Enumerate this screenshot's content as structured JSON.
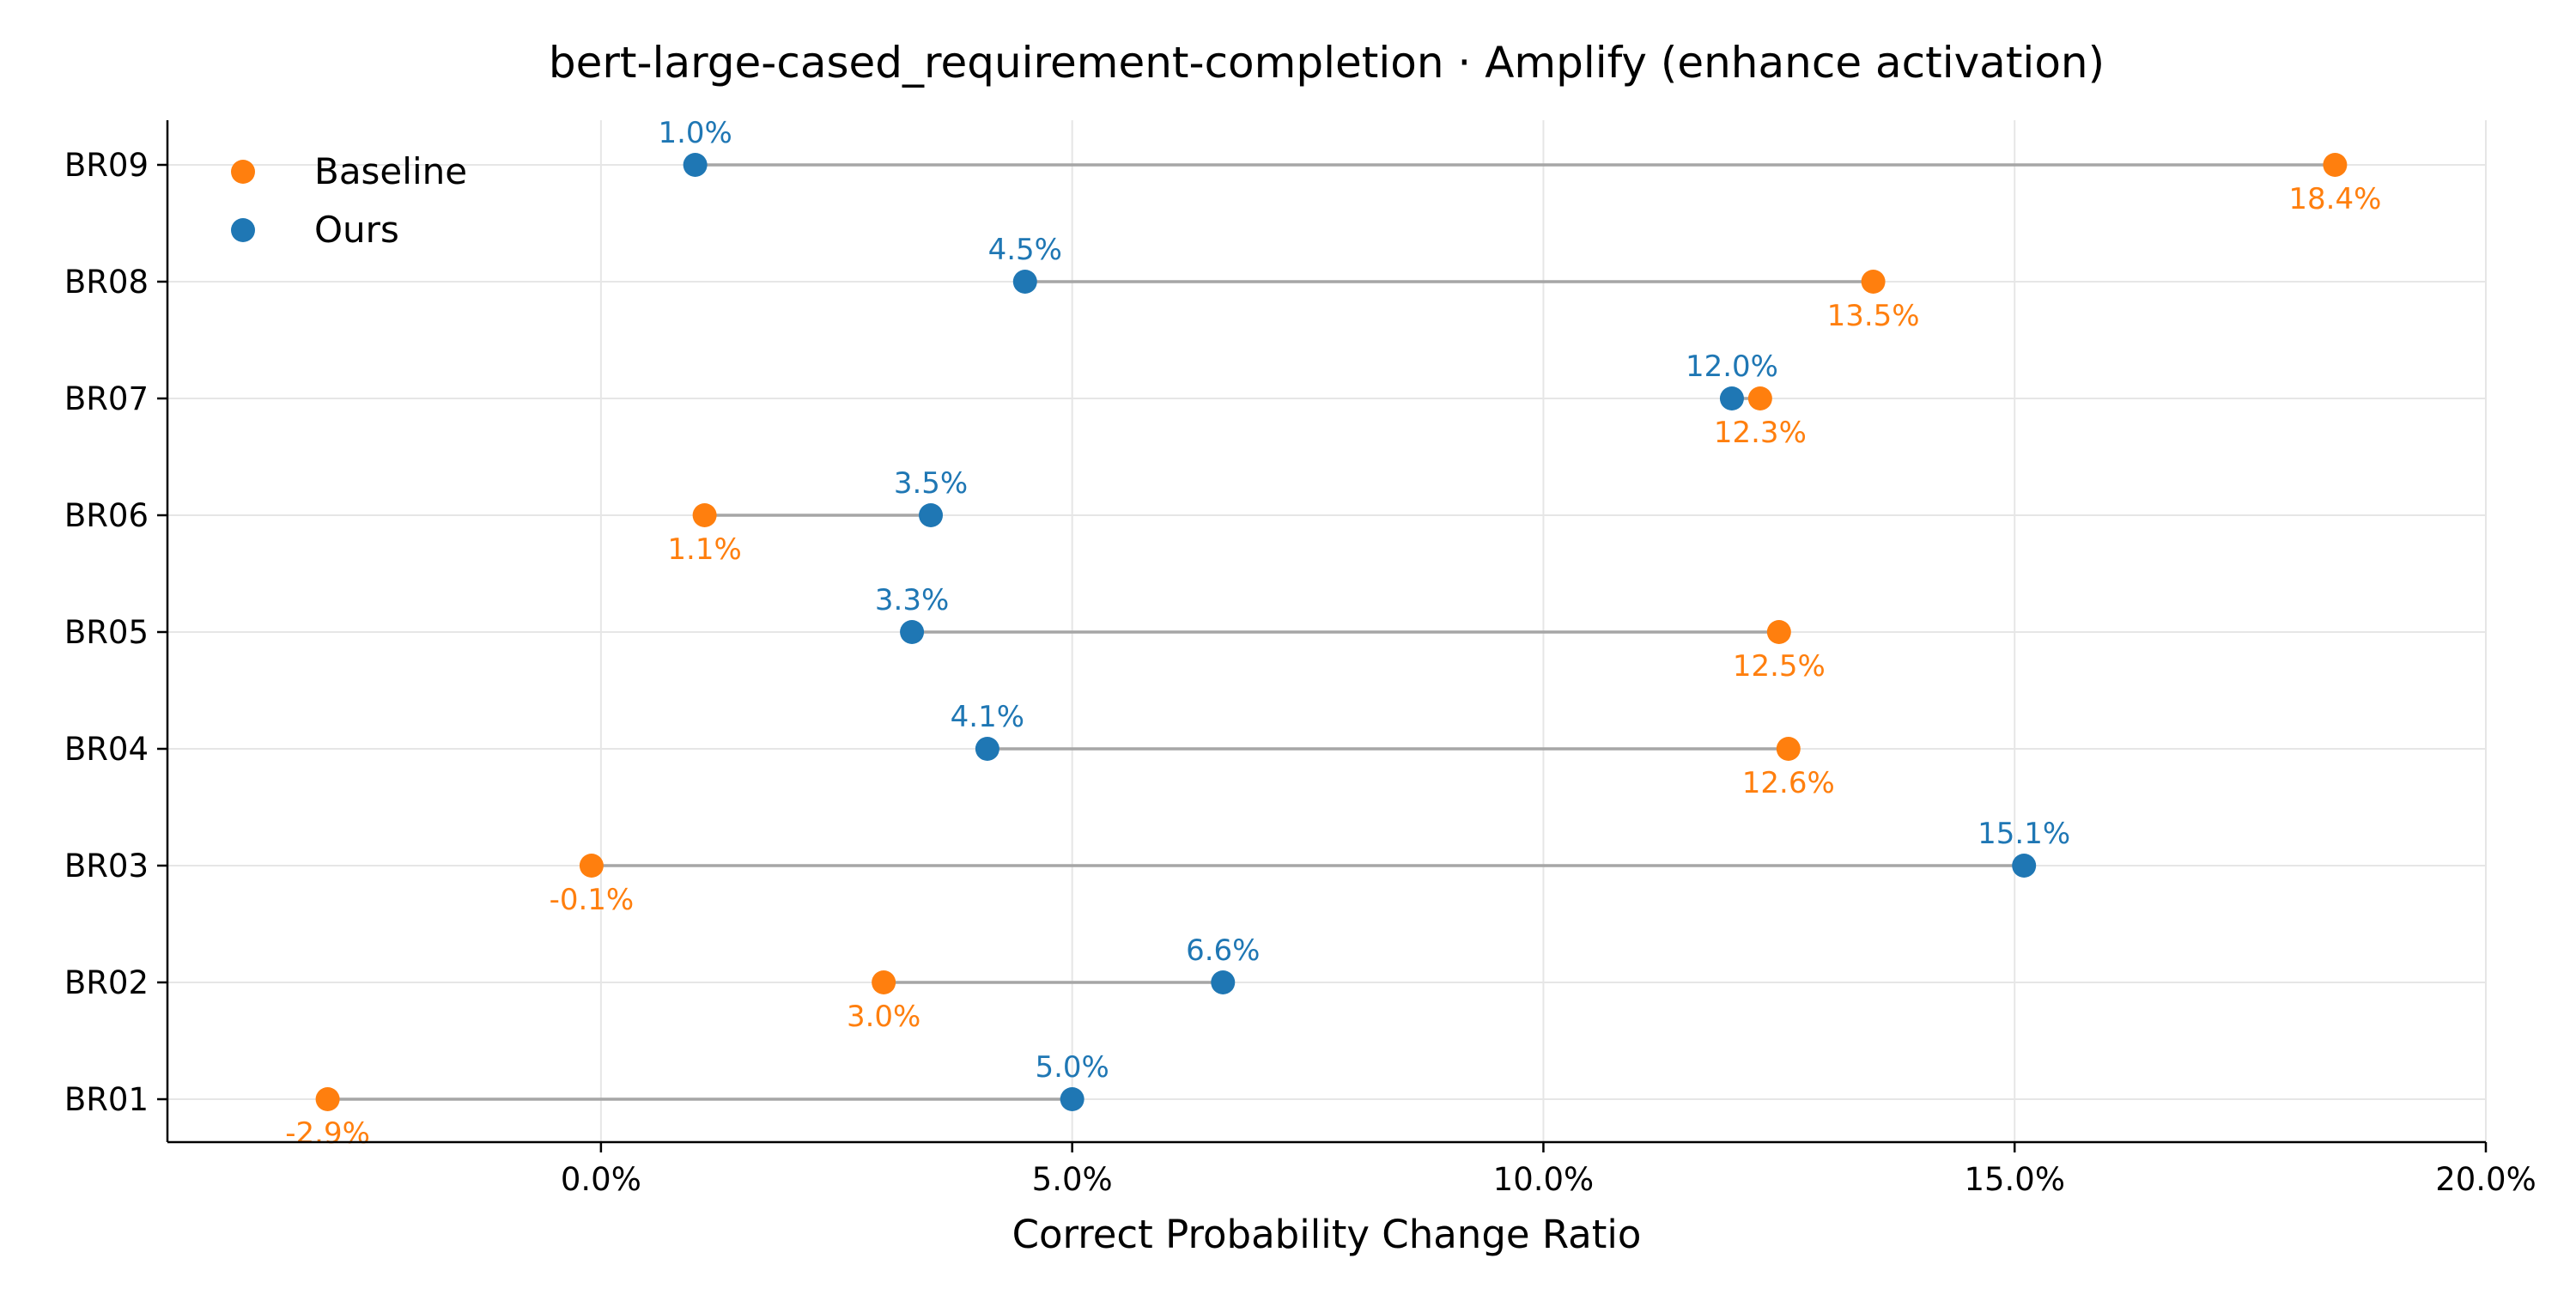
{
  "chart_data": {
    "type": "scatter",
    "subtype": "dumbbell",
    "title": "bert-large-cased_requirement-completion · Amplify (enhance activation)",
    "xlabel": "Correct Probability Change Ratio",
    "ylabel": "",
    "categories": [
      "BR01",
      "BR02",
      "BR03",
      "BR04",
      "BR05",
      "BR06",
      "BR07",
      "BR08",
      "BR09"
    ],
    "xlim": [
      -4.6,
      20.0
    ],
    "x_ticks": [
      0,
      5,
      10,
      15,
      20
    ],
    "x_tick_labels": [
      "0.0%",
      "5.0%",
      "10.0%",
      "15.0%",
      "20.0%"
    ],
    "grid": true,
    "legend_position": "top-left",
    "colors": {
      "baseline": "#ff7f0e",
      "ours": "#1f77b4",
      "connector": "#a6a6a6",
      "grid": "#e6e6e6"
    },
    "series": [
      {
        "name": "Baseline",
        "values": [
          -2.9,
          3.0,
          -0.1,
          12.6,
          12.5,
          1.1,
          12.3,
          13.5,
          18.4
        ],
        "labels": [
          "-2.9%",
          "3.0%",
          "-0.1%",
          "12.6%",
          "12.5%",
          "1.1%",
          "12.3%",
          "13.5%",
          "18.4%"
        ]
      },
      {
        "name": "Ours",
        "values": [
          5.0,
          6.6,
          15.1,
          4.1,
          3.3,
          3.5,
          12.0,
          4.5,
          1.0
        ],
        "labels": [
          "5.0%",
          "6.6%",
          "15.1%",
          "4.1%",
          "3.3%",
          "3.5%",
          "12.0%",
          "4.5%",
          "1.0%"
        ]
      }
    ]
  }
}
